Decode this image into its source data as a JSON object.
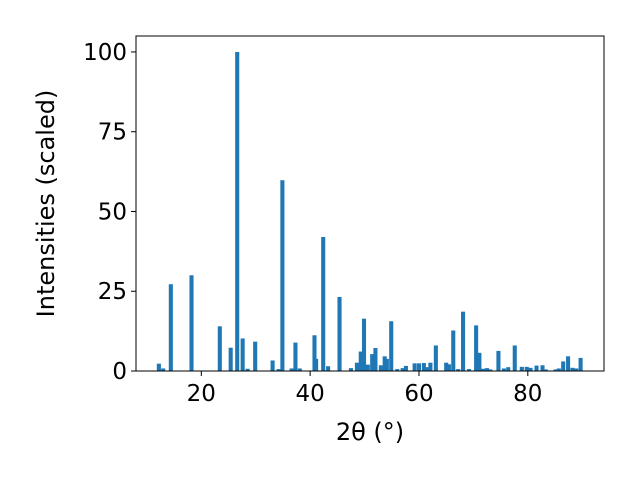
{
  "chart_data": {
    "type": "bar",
    "xlabel": "2θ (°)",
    "ylabel": "Intensities (scaled)",
    "xlim": [
      8,
      94
    ],
    "ylim": [
      0,
      105
    ],
    "xticks": [
      20,
      40,
      60,
      80
    ],
    "yticks": [
      0,
      25,
      50,
      75,
      100
    ],
    "bar_width": 0.75,
    "grid": false,
    "color": "#1f77b4",
    "x": [
      12.2,
      13.0,
      14.4,
      18.2,
      23.4,
      25.4,
      26.6,
      27.6,
      28.5,
      29.9,
      33.1,
      34.2,
      34.9,
      36.6,
      37.3,
      38.1,
      40.8,
      41.1,
      42.4,
      43.3,
      45.4,
      47.5,
      48.6,
      49.3,
      49.9,
      50.6,
      51.4,
      52.0,
      53.0,
      53.7,
      54.1,
      54.9,
      56.0,
      57.0,
      57.6,
      59.2,
      60.0,
      60.9,
      61.4,
      62.1,
      63.1,
      65.0,
      65.5,
      66.3,
      67.2,
      68.1,
      69.2,
      70.5,
      71.1,
      71.8,
      72.5,
      73.1,
      74.6,
      75.6,
      76.4,
      77.6,
      78.9,
      79.8,
      80.5,
      81.6,
      82.7,
      83.3,
      85.1,
      85.7,
      86.5,
      87.4,
      88.2,
      88.9,
      89.7
    ],
    "values": [
      2.3,
      0.8,
      27.2,
      30.0,
      14.0,
      7.3,
      100.0,
      10.2,
      0.7,
      9.2,
      3.3,
      0.6,
      59.8,
      0.8,
      8.9,
      0.8,
      11.2,
      3.8,
      42.0,
      1.5,
      23.2,
      0.9,
      2.6,
      6.1,
      16.4,
      2.0,
      5.3,
      7.2,
      1.8,
      4.6,
      3.8,
      15.6,
      0.6,
      0.9,
      1.6,
      2.4,
      2.4,
      2.5,
      1.2,
      2.6,
      8.0,
      2.6,
      2.1,
      12.7,
      0.6,
      18.6,
      0.6,
      14.3,
      5.7,
      0.7,
      0.9,
      0.5,
      6.3,
      0.8,
      1.2,
      8.0,
      1.3,
      1.3,
      1.0,
      1.7,
      1.8,
      0.5,
      0.5,
      0.8,
      3.0,
      4.6,
      1.0,
      0.8,
      4.1
    ]
  }
}
